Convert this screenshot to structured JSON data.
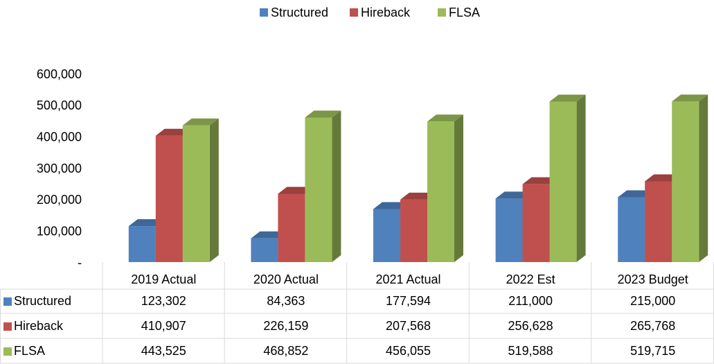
{
  "chart_data": {
    "type": "bar3d",
    "categories": [
      "2019 Actual",
      "2020 Actual",
      "2021 Actual",
      "2022 Est",
      "2023 Budget"
    ],
    "series": [
      {
        "name": "Structured",
        "color": "#4f81bd",
        "values": [
          123302,
          84363,
          177594,
          211000,
          215000
        ],
        "value_labels": [
          "123,302",
          "84,363",
          "177,594",
          "211,000",
          "215,000"
        ]
      },
      {
        "name": "Hireback",
        "color": "#c0504d",
        "values": [
          410907,
          226159,
          207568,
          256628,
          265768
        ],
        "value_labels": [
          "410,907",
          "226,159",
          "207,568",
          "256,628",
          "265,768"
        ]
      },
      {
        "name": "FLSA",
        "color": "#9bbb59",
        "values": [
          443525,
          468852,
          456055,
          519588,
          519715
        ],
        "value_labels": [
          "443,525",
          "468,852",
          "456,055",
          "519,588",
          "519,715"
        ]
      }
    ],
    "ylim": [
      0,
      600000
    ],
    "yticks": [
      {
        "value": 0,
        "label": "-"
      },
      {
        "value": 100000,
        "label": "100,000"
      },
      {
        "value": 200000,
        "label": "200,000"
      },
      {
        "value": 300000,
        "label": "300,000"
      },
      {
        "value": 400000,
        "label": "400,000"
      },
      {
        "value": 500000,
        "label": "500,000"
      },
      {
        "value": 600000,
        "label": "600,000"
      }
    ],
    "legend": "top",
    "data_table": true
  }
}
